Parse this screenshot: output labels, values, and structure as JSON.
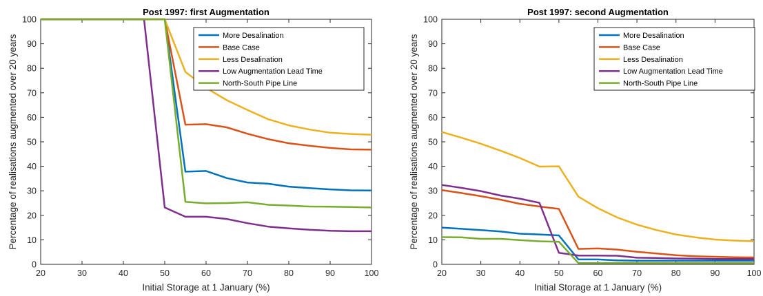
{
  "chart_data": [
    {
      "type": "line",
      "title": "Post 1997: first Augmentation",
      "xlabel": "Initial Storage at 1 January (%)",
      "ylabel": "Percentage of realisations augmented over 20 years",
      "xlim": [
        20,
        100
      ],
      "ylim": [
        0,
        100
      ],
      "xticks": [
        "20",
        "30",
        "40",
        "50",
        "60",
        "70",
        "80",
        "90",
        "100"
      ],
      "yticks": [
        "0",
        "10",
        "20",
        "30",
        "40",
        "50",
        "60",
        "70",
        "80",
        "90",
        "100"
      ],
      "grid": false,
      "legend_position": "top-right",
      "series": [
        {
          "name": "More Desalination",
          "color": "#0072BD",
          "x": [
            20,
            25,
            30,
            35,
            40,
            45,
            50,
            55,
            60,
            65,
            70,
            75,
            80,
            85,
            90,
            95,
            100
          ],
          "y": [
            100,
            100,
            100,
            100,
            100,
            100,
            100,
            37.8,
            38.1,
            35.2,
            33.4,
            32.9,
            31.7,
            31.1,
            30.6,
            30.2,
            30.1
          ]
        },
        {
          "name": "Base Case",
          "color": "#D95319",
          "x": [
            20,
            25,
            30,
            35,
            40,
            45,
            50,
            55,
            60,
            65,
            70,
            75,
            80,
            85,
            90,
            95,
            100
          ],
          "y": [
            100,
            100,
            100,
            100,
            100,
            100,
            100,
            57.0,
            57.2,
            55.9,
            53.3,
            51.1,
            49.4,
            48.4,
            47.5,
            46.9,
            46.8
          ]
        },
        {
          "name": "Less Desalination",
          "color": "#EDB120",
          "x": [
            20,
            25,
            30,
            35,
            40,
            45,
            50,
            55,
            60,
            65,
            70,
            75,
            80,
            85,
            90,
            95,
            100
          ],
          "y": [
            100,
            100,
            100,
            100,
            100,
            100,
            100,
            78.5,
            72.0,
            67.0,
            63.0,
            59.2,
            56.7,
            55.0,
            53.7,
            53.2,
            52.9
          ]
        },
        {
          "name": "Low Augmentation Lead Time",
          "color": "#7E2F8E",
          "x": [
            20,
            25,
            30,
            35,
            40,
            45,
            50,
            55,
            60,
            65,
            70,
            75,
            80,
            85,
            90,
            95,
            100
          ],
          "y": [
            100,
            100,
            100,
            100,
            100,
            100,
            23.2,
            19.4,
            19.4,
            18.5,
            16.8,
            15.4,
            14.7,
            14.1,
            13.7,
            13.5,
            13.5
          ]
        },
        {
          "name": "North-South Pipe Line",
          "color": "#77AC30",
          "x": [
            20,
            25,
            30,
            35,
            40,
            45,
            50,
            55,
            60,
            65,
            70,
            75,
            80,
            85,
            90,
            95,
            100
          ],
          "y": [
            100,
            100,
            100,
            100,
            100,
            100,
            100,
            25.5,
            24.9,
            25.0,
            25.3,
            24.3,
            24.0,
            23.6,
            23.5,
            23.4,
            23.2
          ]
        }
      ]
    },
    {
      "type": "line",
      "title": "Post 1997: second Augmentation",
      "xlabel": "Initial Storage at 1 January (%)",
      "ylabel": "Percentage of realisations augmented over 20 years",
      "xlim": [
        20,
        100
      ],
      "ylim": [
        0,
        100
      ],
      "xticks": [
        "20",
        "30",
        "40",
        "50",
        "60",
        "70",
        "80",
        "90",
        "100"
      ],
      "yticks": [
        "0",
        "10",
        "20",
        "30",
        "40",
        "50",
        "60",
        "70",
        "80",
        "90",
        "100"
      ],
      "grid": false,
      "legend_position": "top-right",
      "series": [
        {
          "name": "More Desalination",
          "color": "#0072BD",
          "x": [
            20,
            25,
            30,
            35,
            40,
            45,
            50,
            55,
            60,
            65,
            70,
            75,
            80,
            85,
            90,
            95,
            100
          ],
          "y": [
            15.0,
            14.5,
            14.0,
            13.4,
            12.5,
            12.2,
            11.8,
            2.0,
            2.0,
            1.6,
            1.5,
            1.5,
            1.5,
            1.5,
            1.5,
            1.5,
            1.5
          ]
        },
        {
          "name": "Base Case",
          "color": "#D95319",
          "x": [
            20,
            25,
            30,
            35,
            40,
            45,
            50,
            55,
            60,
            65,
            70,
            75,
            80,
            85,
            90,
            95,
            100
          ],
          "y": [
            30.3,
            29.1,
            27.8,
            26.4,
            24.7,
            23.6,
            22.6,
            6.3,
            6.5,
            6.0,
            5.1,
            4.4,
            3.7,
            3.3,
            3.1,
            2.9,
            2.8
          ]
        },
        {
          "name": "Less Desalination",
          "color": "#EDB120",
          "x": [
            20,
            25,
            30,
            35,
            40,
            45,
            50,
            55,
            60,
            65,
            70,
            75,
            80,
            85,
            90,
            95,
            100
          ],
          "y": [
            54.0,
            51.7,
            49.2,
            46.4,
            43.4,
            39.9,
            40.0,
            27.6,
            22.9,
            19.1,
            16.2,
            14.0,
            12.2,
            11.0,
            10.1,
            9.7,
            9.4
          ]
        },
        {
          "name": "Low Augmentation Lead Time",
          "color": "#7E2F8E",
          "x": [
            20,
            25,
            30,
            35,
            40,
            45,
            50,
            55,
            60,
            65,
            70,
            75,
            80,
            85,
            90,
            95,
            100
          ],
          "y": [
            32.4,
            31.2,
            29.9,
            28.1,
            26.8,
            25.1,
            4.7,
            3.6,
            3.6,
            3.5,
            2.7,
            2.6,
            2.4,
            2.3,
            2.2,
            2.2,
            2.2
          ]
        },
        {
          "name": "North-South Pipe Line",
          "color": "#77AC30",
          "x": [
            20,
            25,
            30,
            35,
            40,
            45,
            50,
            55,
            60,
            65,
            70,
            75,
            80,
            85,
            90,
            95,
            100
          ],
          "y": [
            11.1,
            11.0,
            10.4,
            10.4,
            9.9,
            9.4,
            9.2,
            0.5,
            0.5,
            0.5,
            0.5,
            0.5,
            0.5,
            0.5,
            0.5,
            0.5,
            0.5
          ]
        }
      ]
    }
  ]
}
